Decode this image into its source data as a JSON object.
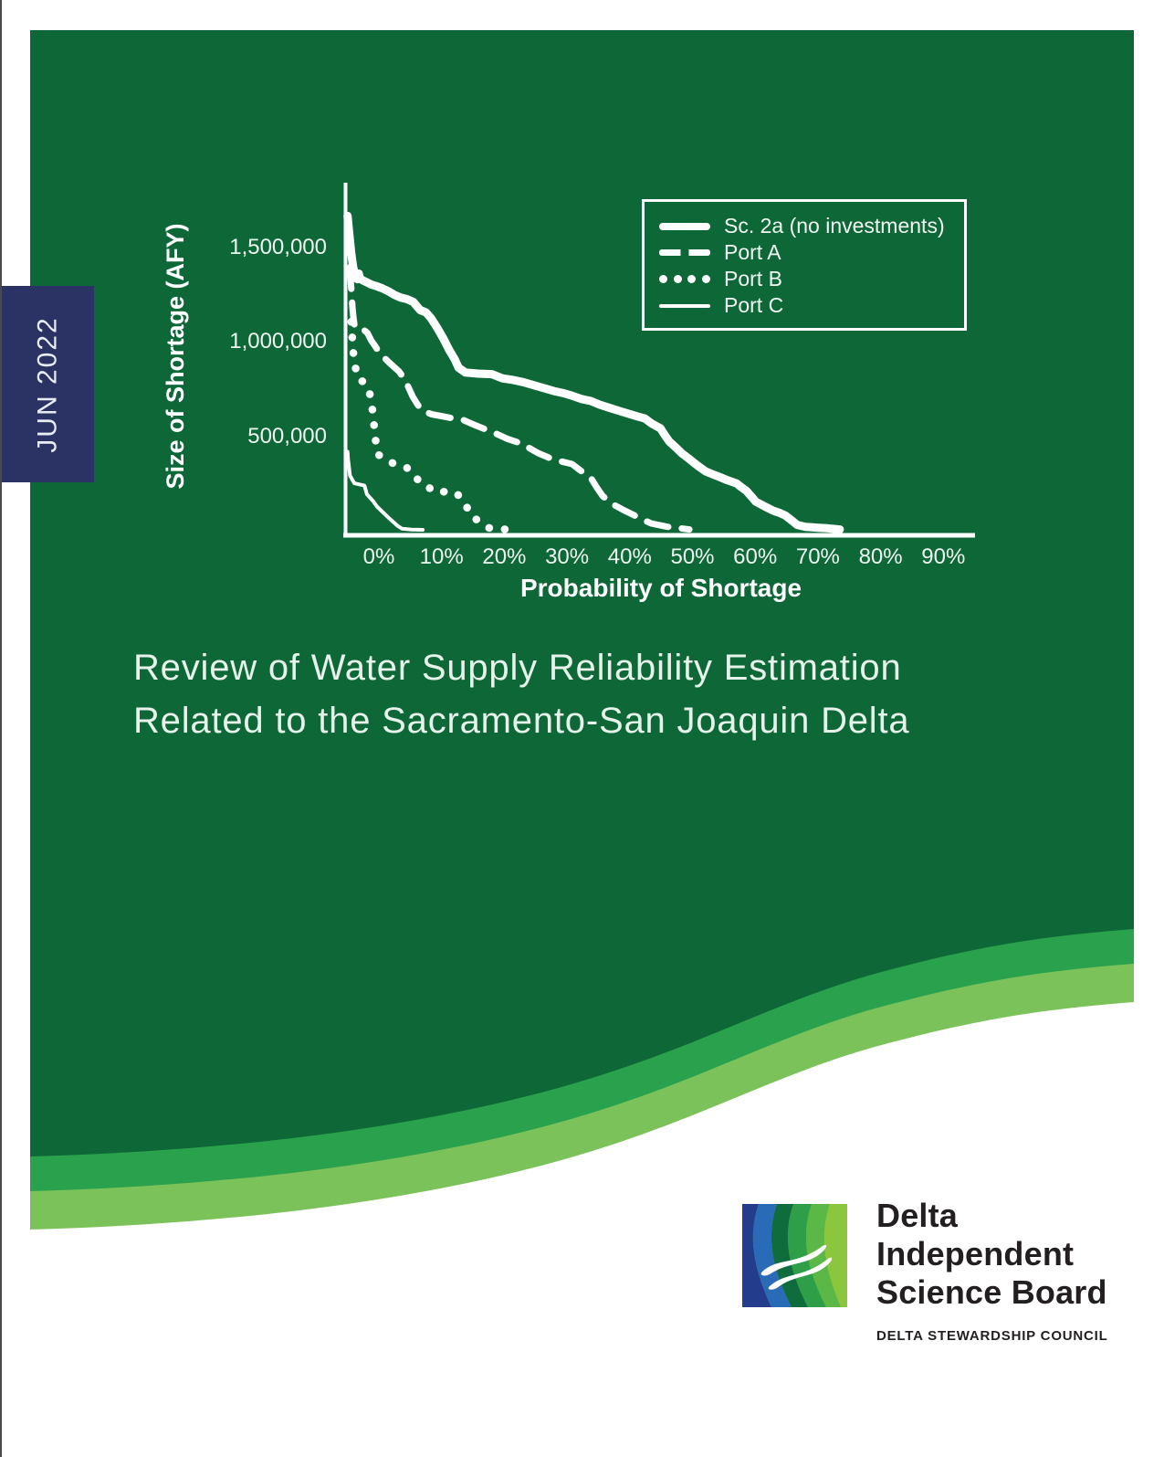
{
  "page": {
    "date_tab": "JUN 2022",
    "title_line1": "Review of Water Supply Reliability Estimation",
    "title_line2": "Related to the Sacramento-San Joaquin Delta",
    "colors": {
      "cover_green": "#0e6737",
      "wave_mid_green": "#2aa14c",
      "wave_light_green": "#7cc25b",
      "tab_navy": "#2a3364",
      "title_text": "#e6f2ea",
      "chart_line": "#ffffff",
      "logo_text": "#231f20"
    }
  },
  "chart_data": {
    "type": "line",
    "title": "",
    "xlabel": "Probability of Shortage",
    "ylabel": "Size of Shortage (AFY)",
    "xlim": [
      -5,
      95
    ],
    "ylim": [
      0,
      1850000
    ],
    "grid": false,
    "legend_position": "top-right",
    "x_ticks": [
      {
        "label": "0%",
        "value": 0
      },
      {
        "label": "10%",
        "value": 10
      },
      {
        "label": "20%",
        "value": 20
      },
      {
        "label": "30%",
        "value": 30
      },
      {
        "label": "40%",
        "value": 40
      },
      {
        "label": "50%",
        "value": 50
      },
      {
        "label": "60%",
        "value": 60
      },
      {
        "label": "70%",
        "value": 70
      },
      {
        "label": "80%",
        "value": 80
      },
      {
        "label": "90%",
        "value": 90
      }
    ],
    "y_ticks": [
      {
        "label": "500,000",
        "value": 500000
      },
      {
        "label": "1,000,000",
        "value": 1000000
      },
      {
        "label": "1,500,000",
        "value": 1500000
      }
    ],
    "series": [
      {
        "name": "Sc. 2a (no investments)",
        "style": "solid-thick",
        "points": [
          [
            -5,
            1660000
          ],
          [
            -4.7,
            1560000
          ],
          [
            -4.4,
            1460000
          ],
          [
            -4.1,
            1390000
          ],
          [
            -3.7,
            1335000
          ],
          [
            -3.4,
            1325000
          ],
          [
            -3.2,
            1355000
          ],
          [
            -3,
            1330000
          ],
          [
            -2.6,
            1320000
          ],
          [
            -2,
            1310000
          ],
          [
            -1.3,
            1298000
          ],
          [
            -0.5,
            1290000
          ],
          [
            0.5,
            1278000
          ],
          [
            1.5,
            1262000
          ],
          [
            2.5,
            1242000
          ],
          [
            3.5,
            1228000
          ],
          [
            4.5,
            1220000
          ],
          [
            5.5,
            1205000
          ],
          [
            6,
            1185000
          ],
          [
            6.6,
            1162000
          ],
          [
            7.5,
            1150000
          ],
          [
            8.3,
            1120000
          ],
          [
            9.3,
            1068000
          ],
          [
            10.3,
            1010000
          ],
          [
            11.2,
            952000
          ],
          [
            12.1,
            902000
          ],
          [
            12.7,
            858000
          ],
          [
            13.8,
            832000
          ],
          [
            15.8,
            826000
          ],
          [
            18,
            823000
          ],
          [
            19.7,
            801000
          ],
          [
            21.5,
            792000
          ],
          [
            23,
            781000
          ],
          [
            25.5,
            757000
          ],
          [
            27.9,
            734000
          ],
          [
            29.5,
            722000
          ],
          [
            30.8,
            709000
          ],
          [
            32.3,
            692000
          ],
          [
            33.8,
            681000
          ],
          [
            35.2,
            662000
          ],
          [
            36.7,
            646000
          ],
          [
            38.4,
            628000
          ],
          [
            40,
            612000
          ],
          [
            41.2,
            600000
          ],
          [
            42.4,
            589000
          ],
          [
            43.6,
            560000
          ],
          [
            44.9,
            536000
          ],
          [
            45.6,
            500000
          ],
          [
            46.3,
            467000
          ],
          [
            47.5,
            431000
          ],
          [
            48.3,
            405000
          ],
          [
            49.2,
            382000
          ],
          [
            50,
            361000
          ],
          [
            51,
            335000
          ],
          [
            52.1,
            309000
          ],
          [
            53.1,
            295000
          ],
          [
            54.2,
            281000
          ],
          [
            55.6,
            262000
          ],
          [
            57,
            246000
          ],
          [
            57.8,
            225000
          ],
          [
            58.6,
            206000
          ],
          [
            59.4,
            176000
          ],
          [
            60.1,
            149000
          ],
          [
            61.5,
            124000
          ],
          [
            62.9,
            101000
          ],
          [
            64,
            88000
          ],
          [
            64.8,
            76000
          ],
          [
            65.8,
            50000
          ],
          [
            66.7,
            26000
          ],
          [
            68,
            16000
          ],
          [
            70,
            11000
          ],
          [
            71.5,
            8000
          ],
          [
            73.5,
            2000
          ]
        ]
      },
      {
        "name": "Port A",
        "style": "dashed",
        "points": [
          [
            -4.6,
            1390000
          ],
          [
            -4.45,
            1300000
          ],
          [
            -4.35,
            1255000
          ],
          [
            -4.2,
            1170000
          ],
          [
            -4.05,
            1120000
          ],
          [
            -3.85,
            1072000
          ],
          [
            -3.3,
            1060000
          ],
          [
            -2.4,
            1057000
          ],
          [
            -1.8,
            1040000
          ],
          [
            -1.2,
            1000000
          ],
          [
            -0.6,
            972000
          ],
          [
            0,
            941000
          ],
          [
            0.8,
            912000
          ],
          [
            1.6,
            886000
          ],
          [
            2.4,
            862000
          ],
          [
            3.2,
            838000
          ],
          [
            4,
            801000
          ],
          [
            4.6,
            762000
          ],
          [
            5,
            733000
          ],
          [
            5.4,
            704000
          ],
          [
            6.1,
            666000
          ],
          [
            6.8,
            633000
          ],
          [
            8.4,
            611000
          ],
          [
            10,
            601000
          ],
          [
            11.5,
            592000
          ],
          [
            13.3,
            583000
          ],
          [
            15.5,
            551000
          ],
          [
            18.2,
            516000
          ],
          [
            20.5,
            481000
          ],
          [
            23,
            453000
          ],
          [
            24.2,
            428000
          ],
          [
            25.5,
            404000
          ],
          [
            27.9,
            371000
          ],
          [
            30.8,
            348000
          ],
          [
            31.8,
            322000
          ],
          [
            32.7,
            300000
          ],
          [
            33.8,
            275000
          ],
          [
            34.7,
            226000
          ],
          [
            35.7,
            178000
          ],
          [
            37.6,
            130000
          ],
          [
            39,
            105000
          ],
          [
            40.4,
            82000
          ],
          [
            42,
            55000
          ],
          [
            43.4,
            34000
          ],
          [
            46,
            16000
          ],
          [
            48,
            8000
          ],
          [
            49.5,
            2000
          ]
        ]
      },
      {
        "name": "Port B",
        "style": "dotted",
        "points": [
          [
            -4.4,
            1100000
          ],
          [
            -4.3,
            1040000
          ],
          [
            -4.15,
            975000
          ],
          [
            -4,
            911000
          ],
          [
            -3.8,
            876000
          ],
          [
            -3.5,
            806000
          ],
          [
            -2.9,
            791000
          ],
          [
            -2.2,
            777000
          ],
          [
            -1.6,
            743000
          ],
          [
            -1.3,
            694000
          ],
          [
            -1.1,
            656000
          ],
          [
            -0.9,
            598000
          ],
          [
            -0.75,
            549000
          ],
          [
            -0.6,
            500000
          ],
          [
            -0.45,
            452000
          ],
          [
            -0.3,
            404000
          ],
          [
            0.6,
            380000
          ],
          [
            2.6,
            346000
          ],
          [
            4.4,
            331000
          ],
          [
            5.1,
            301000
          ],
          [
            5.8,
            273000
          ],
          [
            7.6,
            245000
          ],
          [
            8.4,
            206000
          ],
          [
            10.5,
            201000
          ],
          [
            12.4,
            196000
          ],
          [
            13.1,
            161000
          ],
          [
            13.8,
            138000
          ],
          [
            14.6,
            76000
          ],
          [
            15.7,
            51000
          ],
          [
            17.3,
            11000
          ],
          [
            19,
            5000
          ],
          [
            20.8,
            1000
          ]
        ]
      },
      {
        "name": "Port C",
        "style": "solid-thin",
        "points": [
          [
            -5,
            413000
          ],
          [
            -4.9,
            371000
          ],
          [
            -4.6,
            286000
          ],
          [
            -3.9,
            246000
          ],
          [
            -2.3,
            234000
          ],
          [
            -1.9,
            188000
          ],
          [
            -0.9,
            151000
          ],
          [
            -0.3,
            123000
          ],
          [
            1,
            81000
          ],
          [
            1.8,
            56000
          ],
          [
            3,
            21000
          ],
          [
            3.7,
            6000
          ],
          [
            5.2,
            1000
          ],
          [
            7,
            0
          ]
        ]
      }
    ]
  },
  "logo": {
    "line1": "Delta",
    "line2": "Independent",
    "line3": "Science Board",
    "subtext": "DELTA STEWARDSHIP COUNCIL"
  }
}
